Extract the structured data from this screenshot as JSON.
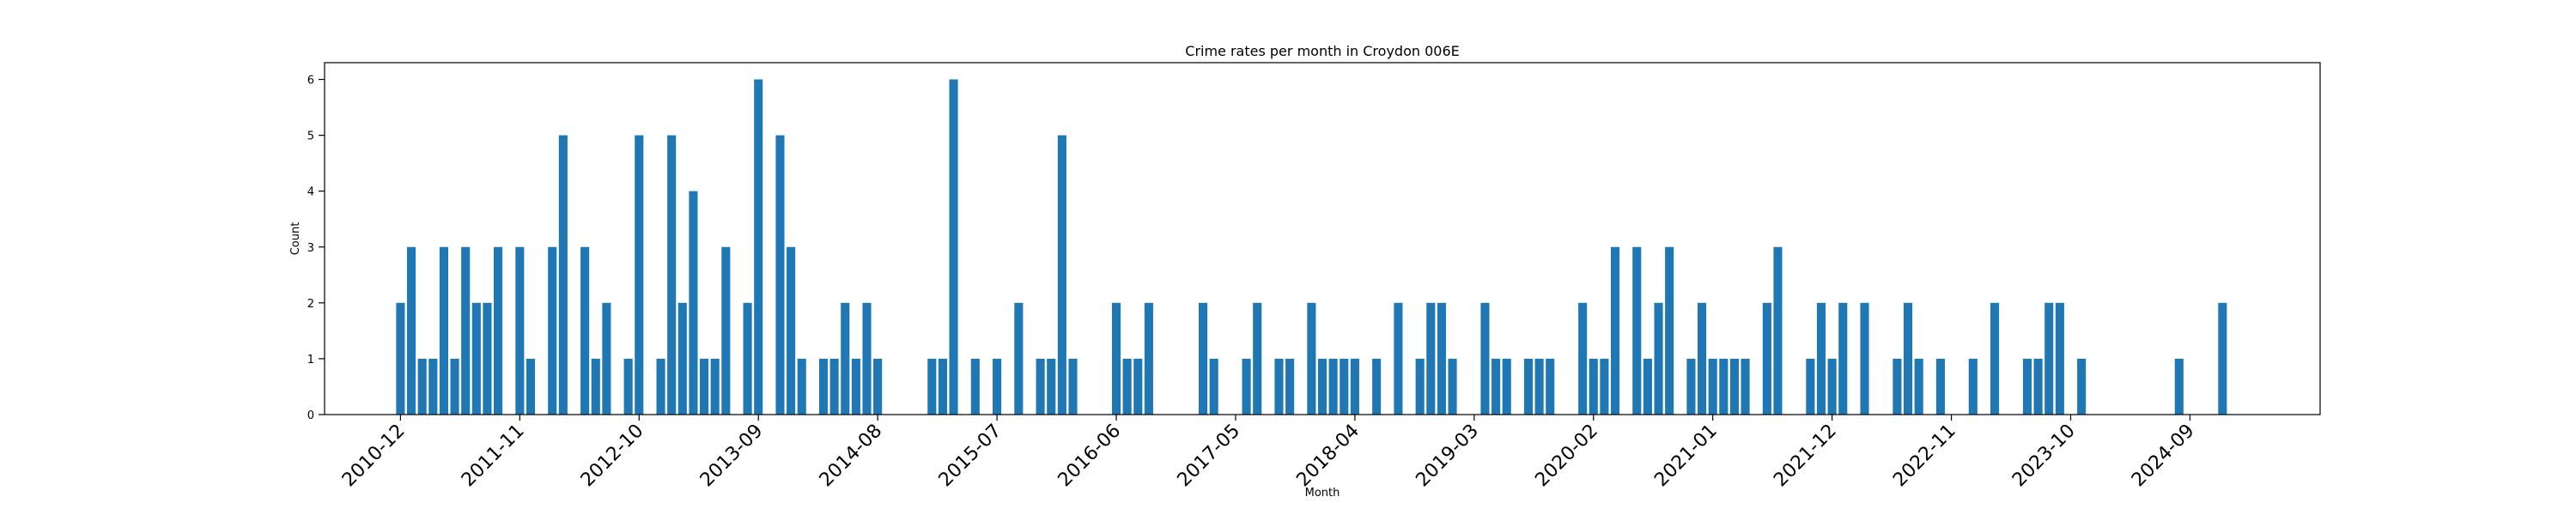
{
  "chart_data": {
    "type": "bar",
    "title": "Crime rates per month in Croydon 006E",
    "xlabel": "Month",
    "ylabel": "Count",
    "ylim": [
      0,
      6.3
    ],
    "yticks": [
      0,
      1,
      2,
      3,
      4,
      5,
      6
    ],
    "xticks": [
      "2010-12",
      "2011-11",
      "2012-10",
      "2013-09",
      "2014-08",
      "2015-07",
      "2016-06",
      "2017-05",
      "2018-04",
      "2019-03",
      "2020-02",
      "2021-01",
      "2021-12",
      "2022-11",
      "2023-10",
      "2024-09"
    ],
    "xlim": [
      "2010-05",
      "2025-09"
    ],
    "color": "#1f77b4",
    "grid": false,
    "bars": [
      {
        "x": "2010-12",
        "y": 2
      },
      {
        "x": "2011-01",
        "y": 3
      },
      {
        "x": "2011-02",
        "y": 1
      },
      {
        "x": "2011-03",
        "y": 1
      },
      {
        "x": "2011-04",
        "y": 3
      },
      {
        "x": "2011-05",
        "y": 1
      },
      {
        "x": "2011-06",
        "y": 3
      },
      {
        "x": "2011-07",
        "y": 2
      },
      {
        "x": "2011-08",
        "y": 2
      },
      {
        "x": "2011-09",
        "y": 3
      },
      {
        "x": "2011-11",
        "y": 3
      },
      {
        "x": "2011-12",
        "y": 1
      },
      {
        "x": "2012-02",
        "y": 3
      },
      {
        "x": "2012-03",
        "y": 5
      },
      {
        "x": "2012-05",
        "y": 3
      },
      {
        "x": "2012-06",
        "y": 1
      },
      {
        "x": "2012-07",
        "y": 2
      },
      {
        "x": "2012-09",
        "y": 1
      },
      {
        "x": "2012-10",
        "y": 5
      },
      {
        "x": "2012-12",
        "y": 1
      },
      {
        "x": "2013-01",
        "y": 5
      },
      {
        "x": "2013-02",
        "y": 2
      },
      {
        "x": "2013-03",
        "y": 4
      },
      {
        "x": "2013-04",
        "y": 1
      },
      {
        "x": "2013-05",
        "y": 1
      },
      {
        "x": "2013-06",
        "y": 3
      },
      {
        "x": "2013-08",
        "y": 2
      },
      {
        "x": "2013-09",
        "y": 6
      },
      {
        "x": "2013-11",
        "y": 5
      },
      {
        "x": "2013-12",
        "y": 3
      },
      {
        "x": "2014-01",
        "y": 1
      },
      {
        "x": "2014-03",
        "y": 1
      },
      {
        "x": "2014-04",
        "y": 1
      },
      {
        "x": "2014-05",
        "y": 2
      },
      {
        "x": "2014-06",
        "y": 1
      },
      {
        "x": "2014-07",
        "y": 2
      },
      {
        "x": "2014-08",
        "y": 1
      },
      {
        "x": "2015-01",
        "y": 1
      },
      {
        "x": "2015-02",
        "y": 1
      },
      {
        "x": "2015-03",
        "y": 6
      },
      {
        "x": "2015-05",
        "y": 1
      },
      {
        "x": "2015-07",
        "y": 1
      },
      {
        "x": "2015-09",
        "y": 2
      },
      {
        "x": "2015-11",
        "y": 1
      },
      {
        "x": "2015-12",
        "y": 1
      },
      {
        "x": "2016-01",
        "y": 5
      },
      {
        "x": "2016-02",
        "y": 1
      },
      {
        "x": "2016-06",
        "y": 2
      },
      {
        "x": "2016-07",
        "y": 1
      },
      {
        "x": "2016-08",
        "y": 1
      },
      {
        "x": "2016-09",
        "y": 2
      },
      {
        "x": "2017-02",
        "y": 2
      },
      {
        "x": "2017-03",
        "y": 1
      },
      {
        "x": "2017-06",
        "y": 1
      },
      {
        "x": "2017-07",
        "y": 2
      },
      {
        "x": "2017-09",
        "y": 1
      },
      {
        "x": "2017-10",
        "y": 1
      },
      {
        "x": "2017-12",
        "y": 2
      },
      {
        "x": "2018-01",
        "y": 1
      },
      {
        "x": "2018-02",
        "y": 1
      },
      {
        "x": "2018-03",
        "y": 1
      },
      {
        "x": "2018-04",
        "y": 1
      },
      {
        "x": "2018-06",
        "y": 1
      },
      {
        "x": "2018-08",
        "y": 2
      },
      {
        "x": "2018-10",
        "y": 1
      },
      {
        "x": "2018-11",
        "y": 2
      },
      {
        "x": "2018-12",
        "y": 2
      },
      {
        "x": "2019-01",
        "y": 1
      },
      {
        "x": "2019-04",
        "y": 2
      },
      {
        "x": "2019-05",
        "y": 1
      },
      {
        "x": "2019-06",
        "y": 1
      },
      {
        "x": "2019-08",
        "y": 1
      },
      {
        "x": "2019-09",
        "y": 1
      },
      {
        "x": "2019-10",
        "y": 1
      },
      {
        "x": "2020-01",
        "y": 2
      },
      {
        "x": "2020-02",
        "y": 1
      },
      {
        "x": "2020-03",
        "y": 1
      },
      {
        "x": "2020-04",
        "y": 3
      },
      {
        "x": "2020-06",
        "y": 3
      },
      {
        "x": "2020-07",
        "y": 1
      },
      {
        "x": "2020-08",
        "y": 2
      },
      {
        "x": "2020-09",
        "y": 3
      },
      {
        "x": "2020-11",
        "y": 1
      },
      {
        "x": "2020-12",
        "y": 2
      },
      {
        "x": "2021-01",
        "y": 1
      },
      {
        "x": "2021-02",
        "y": 1
      },
      {
        "x": "2021-03",
        "y": 1
      },
      {
        "x": "2021-04",
        "y": 1
      },
      {
        "x": "2021-06",
        "y": 2
      },
      {
        "x": "2021-07",
        "y": 3
      },
      {
        "x": "2021-10",
        "y": 1
      },
      {
        "x": "2021-11",
        "y": 2
      },
      {
        "x": "2021-12",
        "y": 1
      },
      {
        "x": "2022-01",
        "y": 2
      },
      {
        "x": "2022-03",
        "y": 2
      },
      {
        "x": "2022-06",
        "y": 1
      },
      {
        "x": "2022-07",
        "y": 2
      },
      {
        "x": "2022-08",
        "y": 1
      },
      {
        "x": "2022-10",
        "y": 1
      },
      {
        "x": "2023-01",
        "y": 1
      },
      {
        "x": "2023-03",
        "y": 2
      },
      {
        "x": "2023-06",
        "y": 1
      },
      {
        "x": "2023-07",
        "y": 1
      },
      {
        "x": "2023-08",
        "y": 2
      },
      {
        "x": "2023-09",
        "y": 2
      },
      {
        "x": "2023-11",
        "y": 1
      },
      {
        "x": "2024-08",
        "y": 1
      },
      {
        "x": "2024-12",
        "y": 2
      }
    ]
  }
}
